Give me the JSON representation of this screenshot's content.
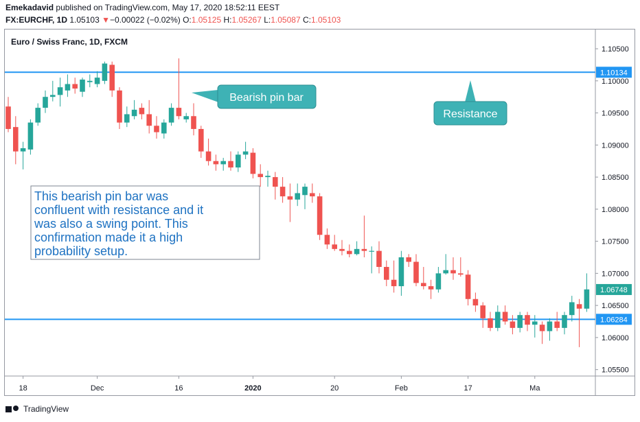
{
  "header": {
    "author": "Emekadavid",
    "published": "published on TradingView.com, May 17, 2020 18:52:11 EEST",
    "symbol": "FX:EURCHF, 1D",
    "last": "1.05103",
    "change_arrow": "▼",
    "change": "−0.00022 (−0.02%)",
    "o_label": "O:",
    "o_value": "1.05125",
    "h_label": "H:",
    "h_value": "1.05267",
    "l_label": "L:",
    "l_value": "1.05087",
    "c_label": "C:",
    "c_value": "1.05103"
  },
  "footer": {
    "brand": "TradingView"
  },
  "colors": {
    "bull": "#26a69a",
    "bear": "#ef5350",
    "line": "#2196f3",
    "callout": "#3eb2b5",
    "note_text": "#1e72c2"
  },
  "chart_data": {
    "type": "candlestick",
    "title": "Euro / Swiss Franc, 1D, FXCM",
    "ylim": [
      1.054,
      1.108
    ],
    "y_ticks": [
      "1.05500",
      "1.06000",
      "1.06500",
      "1.07000",
      "1.07500",
      "1.08000",
      "1.08500",
      "1.09000",
      "1.09500",
      "1.10000",
      "1.10500"
    ],
    "x_ticks": [
      {
        "label": "18",
        "index": 2
      },
      {
        "label": "Dec",
        "index": 12
      },
      {
        "label": "16",
        "index": 23
      },
      {
        "label": "2020",
        "index": 33
      },
      {
        "label": "20",
        "index": 44
      },
      {
        "label": "Feb",
        "index": 53
      },
      {
        "label": "17",
        "index": 62
      },
      {
        "label": "Ma",
        "index": 71
      }
    ],
    "resistance": {
      "value": 1.10134,
      "label": "1.10134",
      "name": "Resistance"
    },
    "support": {
      "value": 1.06284,
      "label": "1.06284"
    },
    "last_price": {
      "value": 1.06748,
      "label": "1.06748"
    },
    "annotations": {
      "pin_bar": "Bearish pin bar",
      "resistance": "Resistance",
      "note": [
        "This bearish pin bar was",
        "confluent with resistance and it",
        "was also a swing point. This",
        "confirmation made it a high",
        "probability setup."
      ]
    },
    "candles": [
      [
        1.096,
        1.0975,
        1.092,
        1.0925
      ],
      [
        1.0928,
        1.0945,
        1.087,
        1.089
      ],
      [
        1.089,
        1.0905,
        1.0862,
        1.0895
      ],
      [
        1.0893,
        1.094,
        1.0885,
        1.0935
      ],
      [
        1.0935,
        1.0965,
        1.093,
        1.0958
      ],
      [
        1.0958,
        1.0985,
        1.095,
        1.0975
      ],
      [
        1.0975,
        1.1,
        1.0968,
        1.0978
      ],
      [
        1.0978,
        1.1005,
        1.096,
        1.099
      ],
      [
        1.0985,
        1.101,
        1.0975,
        1.0995
      ],
      [
        1.0995,
        1.1005,
        1.098,
        1.0988
      ],
      [
        1.0983,
        1.1005,
        1.0975,
        1.1002
      ],
      [
        1.0998,
        1.101,
        1.099,
        1.1
      ],
      [
        1.0995,
        1.1015,
        1.099,
        1.1005
      ],
      [
        1.1,
        1.103,
        1.0995,
        1.1027
      ],
      [
        1.1025,
        1.103,
        1.0975,
        1.0985
      ],
      [
        1.0985,
        1.099,
        1.0925,
        1.0935
      ],
      [
        1.0935,
        1.096,
        1.0928,
        1.0948
      ],
      [
        1.0945,
        1.097,
        1.094,
        1.0955
      ],
      [
        1.0958,
        1.0965,
        1.094,
        1.0948
      ],
      [
        1.0948,
        1.097,
        1.0918,
        1.093
      ],
      [
        1.093,
        1.0945,
        1.091,
        1.092
      ],
      [
        1.0918,
        1.094,
        1.091,
        1.0935
      ],
      [
        1.0935,
        1.0965,
        1.093,
        1.0958
      ],
      [
        1.0958,
        1.1035,
        1.094,
        1.0945
      ],
      [
        1.094,
        1.095,
        1.0935,
        1.0945
      ],
      [
        1.0945,
        1.0965,
        1.0915,
        1.0925
      ],
      [
        1.0925,
        1.093,
        1.088,
        1.089
      ],
      [
        1.089,
        1.091,
        1.0868,
        1.0875
      ],
      [
        1.0875,
        1.0885,
        1.086,
        1.087
      ],
      [
        1.087,
        1.088,
        1.086,
        1.0875
      ],
      [
        1.0875,
        1.089,
        1.086,
        1.0865
      ],
      [
        1.0865,
        1.089,
        1.0858,
        1.0885
      ],
      [
        1.0885,
        1.0905,
        1.0878,
        1.089
      ],
      [
        1.0888,
        1.0895,
        1.0848,
        1.0855
      ],
      [
        1.0855,
        1.087,
        1.0835,
        1.085
      ],
      [
        1.085,
        1.086,
        1.0835,
        1.0852
      ],
      [
        1.085,
        1.0858,
        1.0815,
        1.0835
      ],
      [
        1.0835,
        1.085,
        1.081,
        1.082
      ],
      [
        1.082,
        1.084,
        1.078,
        1.0815
      ],
      [
        1.0815,
        1.084,
        1.0805,
        1.0825
      ],
      [
        1.0822,
        1.084,
        1.08,
        1.0835
      ],
      [
        1.0825,
        1.084,
        1.081,
        1.082
      ],
      [
        1.082,
        1.0825,
        1.0752,
        1.076
      ],
      [
        1.076,
        1.077,
        1.0738,
        1.0745
      ],
      [
        1.0745,
        1.076,
        1.0735,
        1.0738
      ],
      [
        1.0738,
        1.0752,
        1.0728,
        1.0735
      ],
      [
        1.0735,
        1.0745,
        1.0725,
        1.073
      ],
      [
        1.073,
        1.075,
        1.0728,
        1.0738
      ],
      [
        1.0738,
        1.079,
        1.0725,
        1.0735
      ],
      [
        1.0735,
        1.0742,
        1.07,
        1.0735
      ],
      [
        1.0735,
        1.075,
        1.07,
        1.071
      ],
      [
        1.071,
        1.072,
        1.068,
        1.069
      ],
      [
        1.069,
        1.072,
        1.067,
        1.068
      ],
      [
        1.068,
        1.0735,
        1.0665,
        1.0725
      ],
      [
        1.0725,
        1.073,
        1.071,
        1.0718
      ],
      [
        1.0718,
        1.073,
        1.068,
        1.0685
      ],
      [
        1.0685,
        1.071,
        1.0675,
        1.068
      ],
      [
        1.068,
        1.069,
        1.066,
        1.0675
      ],
      [
        1.0675,
        1.071,
        1.067,
        1.07
      ],
      [
        1.07,
        1.073,
        1.0698,
        1.0705
      ],
      [
        1.0705,
        1.0725,
        1.069,
        1.07
      ],
      [
        1.07,
        1.0725,
        1.0695,
        1.0698
      ],
      [
        1.0698,
        1.0705,
        1.065,
        1.066
      ],
      [
        1.066,
        1.067,
        1.064,
        1.065
      ],
      [
        1.065,
        1.0655,
        1.0615,
        1.063
      ],
      [
        1.063,
        1.064,
        1.061,
        1.0615
      ],
      [
        1.0615,
        1.065,
        1.061,
        1.064
      ],
      [
        1.064,
        1.065,
        1.062,
        1.0625
      ],
      [
        1.0625,
        1.0635,
        1.0605,
        1.0615
      ],
      [
        1.0615,
        1.064,
        1.0608,
        1.0635
      ],
      [
        1.0635,
        1.064,
        1.061,
        1.062
      ],
      [
        1.062,
        1.0635,
        1.06,
        1.0625
      ],
      [
        1.062,
        1.0625,
        1.059,
        1.061
      ],
      [
        1.061,
        1.063,
        1.0595,
        1.0625
      ],
      [
        1.0625,
        1.064,
        1.061,
        1.0615
      ],
      [
        1.0615,
        1.064,
        1.0605,
        1.0635
      ],
      [
        1.0635,
        1.0665,
        1.0625,
        1.0655
      ],
      [
        1.0652,
        1.066,
        1.0585,
        1.0645
      ],
      [
        1.0645,
        1.07,
        1.064,
        1.0675
      ]
    ]
  }
}
